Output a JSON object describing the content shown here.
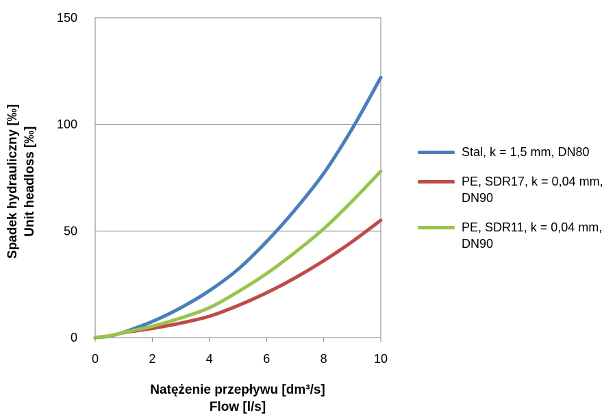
{
  "chart_data": {
    "type": "line",
    "xlabel": "Natężenie przepływu [dm³/s]",
    "xlabel2": "Flow [l/s]",
    "ylabel": "Spadek hydrauliczny [‰]",
    "ylabel2": "Unit headloss [‰]",
    "xlim": [
      0,
      10
    ],
    "ylim": [
      0,
      150
    ],
    "x_ticks": [
      "0",
      "2",
      "4",
      "6",
      "8",
      "10"
    ],
    "y_ticks": [
      "0",
      "50",
      "100",
      "150"
    ],
    "grid": "horizontal",
    "legend_position": "right",
    "x": [
      0,
      0.5,
      1,
      2,
      3,
      4,
      5,
      6,
      7,
      8,
      9,
      10
    ],
    "series": [
      {
        "name": "Stal, k = 1,5 mm, DN80",
        "color": "#4a7ebb",
        "values": [
          0,
          0.6,
          2.5,
          7.5,
          14,
          22,
          32,
          45,
          60,
          77,
          98,
          122
        ]
      },
      {
        "name": "PE, SDR17, k = 0,04 mm, DN90",
        "color": "#be4b48",
        "values": [
          0,
          0.8,
          2.3,
          4.3,
          6.8,
          10,
          15,
          21,
          28,
          36,
          45,
          55
        ]
      },
      {
        "name": "PE, SDR11, k = 0,04 mm, DN90",
        "color": "#98c44c",
        "values": [
          0,
          0.8,
          2.4,
          5.3,
          9.2,
          14,
          21.5,
          30,
          40,
          51,
          64,
          78
        ]
      }
    ]
  }
}
